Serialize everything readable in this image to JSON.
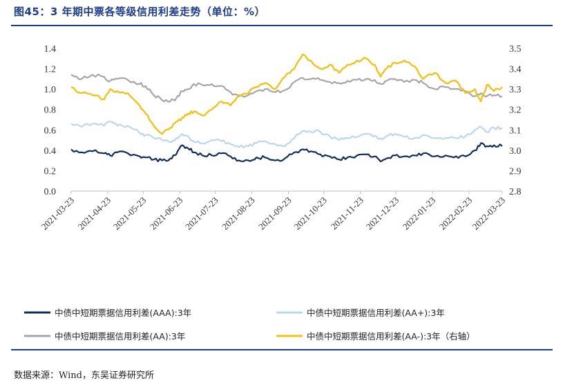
{
  "header": {
    "title": "图45：3 年期中票各等级信用利差走势（单位：%）"
  },
  "footer": {
    "source": "数据来源：Wind，东吴证券研究所"
  },
  "colors": {
    "AAA": "#0f2c5c",
    "AA_plus": "#bcd6ee",
    "AA": "#a6a6a6",
    "AA_minus": "#f2c11b",
    "title": "#1f3c88"
  },
  "chart_data": {
    "type": "line",
    "title": "3 年期中票各等级信用利差走势（单位：%）",
    "xlabel": "",
    "ylabel": "",
    "x_ticks": [
      "2021-03-23",
      "2021-04-23",
      "2021-05-23",
      "2021-06-23",
      "2021-07-23",
      "2021-08-23",
      "2021-09-23",
      "2021-10-23",
      "2021-11-23",
      "2021-12-23",
      "2022-01-23",
      "2022-02-23",
      "2022-03-23"
    ],
    "x_range": [
      "2021-03-23",
      "2022-03-23"
    ],
    "y_left": {
      "ylim": [
        0.0,
        1.4
      ],
      "ticks": [
        "0.0",
        "0.2",
        "0.4",
        "0.6",
        "0.8",
        "1.0",
        "1.2",
        "1.4"
      ]
    },
    "y_right": {
      "ylim": [
        2.8,
        3.5
      ],
      "ticks": [
        "2.8",
        "2.9",
        "3.0",
        "3.1",
        "3.2",
        "3.3",
        "3.4",
        "3.5"
      ]
    },
    "legend_position": "bottom",
    "series": [
      {
        "name": "中债中短期票据信用利差(AAA):3年",
        "axis": "left",
        "color_key": "AAA",
        "points": [
          [
            "2021-03-23",
            0.41
          ],
          [
            "2021-04-01",
            0.38
          ],
          [
            "2021-04-10",
            0.39
          ],
          [
            "2021-04-20",
            0.37
          ],
          [
            "2021-04-25",
            0.35
          ],
          [
            "2021-05-01",
            0.38
          ],
          [
            "2021-05-10",
            0.37
          ],
          [
            "2021-05-20",
            0.34
          ],
          [
            "2021-05-25",
            0.33
          ],
          [
            "2021-06-01",
            0.31
          ],
          [
            "2021-06-08",
            0.3
          ],
          [
            "2021-06-15",
            0.32
          ],
          [
            "2021-06-20",
            0.36
          ],
          [
            "2021-06-25",
            0.45
          ],
          [
            "2021-06-30",
            0.42
          ],
          [
            "2021-07-05",
            0.38
          ],
          [
            "2021-07-12",
            0.35
          ],
          [
            "2021-07-20",
            0.35
          ],
          [
            "2021-07-28",
            0.37
          ],
          [
            "2021-08-05",
            0.34
          ],
          [
            "2021-08-12",
            0.3
          ],
          [
            "2021-08-20",
            0.3
          ],
          [
            "2021-08-27",
            0.33
          ],
          [
            "2021-09-03",
            0.33
          ],
          [
            "2021-09-12",
            0.3
          ],
          [
            "2021-09-20",
            0.32
          ],
          [
            "2021-09-28",
            0.38
          ],
          [
            "2021-10-05",
            0.41
          ],
          [
            "2021-10-12",
            0.39
          ],
          [
            "2021-10-20",
            0.36
          ],
          [
            "2021-10-28",
            0.34
          ],
          [
            "2021-11-05",
            0.31
          ],
          [
            "2021-11-12",
            0.33
          ],
          [
            "2021-11-20",
            0.35
          ],
          [
            "2021-11-28",
            0.36
          ],
          [
            "2021-12-05",
            0.34
          ],
          [
            "2021-12-10",
            0.29
          ],
          [
            "2021-12-15",
            0.32
          ],
          [
            "2021-12-22",
            0.35
          ],
          [
            "2021-12-30",
            0.34
          ],
          [
            "2022-01-08",
            0.35
          ],
          [
            "2022-01-15",
            0.37
          ],
          [
            "2022-01-25",
            0.34
          ],
          [
            "2022-02-03",
            0.35
          ],
          [
            "2022-02-12",
            0.34
          ],
          [
            "2022-02-20",
            0.34
          ],
          [
            "2022-02-28",
            0.4
          ],
          [
            "2022-03-05",
            0.47
          ],
          [
            "2022-03-10",
            0.44
          ],
          [
            "2022-03-16",
            0.45
          ],
          [
            "2022-03-23",
            0.44
          ]
        ]
      },
      {
        "name": "中债中短期票据信用利差(AA+):3年",
        "axis": "left",
        "color_key": "AA_plus",
        "points": [
          [
            "2021-03-23",
            0.66
          ],
          [
            "2021-04-01",
            0.63
          ],
          [
            "2021-04-10",
            0.66
          ],
          [
            "2021-04-20",
            0.64
          ],
          [
            "2021-04-25",
            0.68
          ],
          [
            "2021-05-01",
            0.64
          ],
          [
            "2021-05-10",
            0.64
          ],
          [
            "2021-05-20",
            0.57
          ],
          [
            "2021-05-25",
            0.55
          ],
          [
            "2021-06-01",
            0.52
          ],
          [
            "2021-06-08",
            0.5
          ],
          [
            "2021-06-15",
            0.48
          ],
          [
            "2021-06-20",
            0.52
          ],
          [
            "2021-06-25",
            0.56
          ],
          [
            "2021-06-30",
            0.54
          ],
          [
            "2021-07-05",
            0.48
          ],
          [
            "2021-07-12",
            0.47
          ],
          [
            "2021-07-20",
            0.5
          ],
          [
            "2021-07-28",
            0.49
          ],
          [
            "2021-08-05",
            0.46
          ],
          [
            "2021-08-12",
            0.43
          ],
          [
            "2021-08-20",
            0.44
          ],
          [
            "2021-08-27",
            0.47
          ],
          [
            "2021-09-03",
            0.49
          ],
          [
            "2021-09-12",
            0.46
          ],
          [
            "2021-09-20",
            0.44
          ],
          [
            "2021-09-28",
            0.52
          ],
          [
            "2021-10-05",
            0.59
          ],
          [
            "2021-10-12",
            0.58
          ],
          [
            "2021-10-20",
            0.58
          ],
          [
            "2021-10-28",
            0.54
          ],
          [
            "2021-11-05",
            0.5
          ],
          [
            "2021-11-12",
            0.52
          ],
          [
            "2021-11-20",
            0.53
          ],
          [
            "2021-11-28",
            0.56
          ],
          [
            "2021-12-05",
            0.54
          ],
          [
            "2021-12-10",
            0.52
          ],
          [
            "2021-12-15",
            0.54
          ],
          [
            "2021-12-22",
            0.56
          ],
          [
            "2021-12-30",
            0.53
          ],
          [
            "2022-01-08",
            0.52
          ],
          [
            "2022-01-15",
            0.55
          ],
          [
            "2022-01-25",
            0.52
          ],
          [
            "2022-02-03",
            0.52
          ],
          [
            "2022-02-12",
            0.52
          ],
          [
            "2022-02-20",
            0.54
          ],
          [
            "2022-02-28",
            0.6
          ],
          [
            "2022-03-05",
            0.63
          ],
          [
            "2022-03-10",
            0.58
          ],
          [
            "2022-03-16",
            0.62
          ],
          [
            "2022-03-23",
            0.62
          ]
        ]
      },
      {
        "name": "中债中短期票据信用利差(AA):3年",
        "axis": "left",
        "color_key": "AA",
        "points": [
          [
            "2021-03-23",
            1.14
          ],
          [
            "2021-04-01",
            1.1
          ],
          [
            "2021-04-10",
            1.14
          ],
          [
            "2021-04-20",
            1.12
          ],
          [
            "2021-04-25",
            1.08
          ],
          [
            "2021-05-01",
            1.1
          ],
          [
            "2021-05-10",
            1.09
          ],
          [
            "2021-05-20",
            1.05
          ],
          [
            "2021-05-25",
            1.03
          ],
          [
            "2021-06-01",
            0.94
          ],
          [
            "2021-06-08",
            0.89
          ],
          [
            "2021-06-15",
            0.88
          ],
          [
            "2021-06-20",
            0.91
          ],
          [
            "2021-06-25",
            0.98
          ],
          [
            "2021-06-30",
            1.0
          ],
          [
            "2021-07-05",
            1.05
          ],
          [
            "2021-07-12",
            1.04
          ],
          [
            "2021-07-20",
            1.05
          ],
          [
            "2021-07-28",
            1.03
          ],
          [
            "2021-08-05",
            0.97
          ],
          [
            "2021-08-12",
            0.93
          ],
          [
            "2021-08-20",
            0.94
          ],
          [
            "2021-08-27",
            0.98
          ],
          [
            "2021-09-03",
            1.0
          ],
          [
            "2021-09-12",
            0.97
          ],
          [
            "2021-09-20",
            0.99
          ],
          [
            "2021-09-28",
            1.07
          ],
          [
            "2021-10-05",
            1.11
          ],
          [
            "2021-10-12",
            1.1
          ],
          [
            "2021-10-20",
            1.09
          ],
          [
            "2021-10-28",
            1.07
          ],
          [
            "2021-11-05",
            1.06
          ],
          [
            "2021-11-12",
            1.08
          ],
          [
            "2021-11-20",
            1.09
          ],
          [
            "2021-11-28",
            1.1
          ],
          [
            "2021-12-05",
            1.09
          ],
          [
            "2021-12-10",
            1.05
          ],
          [
            "2021-12-15",
            1.08
          ],
          [
            "2021-12-22",
            1.1
          ],
          [
            "2021-12-30",
            1.07
          ],
          [
            "2022-01-08",
            1.09
          ],
          [
            "2022-01-15",
            1.06
          ],
          [
            "2022-01-25",
            1.0
          ],
          [
            "2022-02-03",
            1.02
          ],
          [
            "2022-02-12",
            1.0
          ],
          [
            "2022-02-20",
            0.98
          ],
          [
            "2022-02-28",
            0.93
          ],
          [
            "2022-03-05",
            0.96
          ],
          [
            "2022-03-10",
            0.93
          ],
          [
            "2022-03-16",
            0.94
          ],
          [
            "2022-03-23",
            0.93
          ]
        ]
      },
      {
        "name": "中债中短期票据信用利差(AA-):3年（右轴）",
        "axis": "right",
        "color_key": "AA_minus",
        "points": [
          [
            "2021-03-23",
            3.31
          ],
          [
            "2021-04-01",
            3.28
          ],
          [
            "2021-04-10",
            3.27
          ],
          [
            "2021-04-20",
            3.25
          ],
          [
            "2021-04-25",
            3.3
          ],
          [
            "2021-05-01",
            3.29
          ],
          [
            "2021-05-10",
            3.28
          ],
          [
            "2021-05-20",
            3.22
          ],
          [
            "2021-05-25",
            3.18
          ],
          [
            "2021-06-01",
            3.12
          ],
          [
            "2021-06-08",
            3.08
          ],
          [
            "2021-06-15",
            3.11
          ],
          [
            "2021-06-20",
            3.14
          ],
          [
            "2021-06-25",
            3.16
          ],
          [
            "2021-06-30",
            3.18
          ],
          [
            "2021-07-05",
            3.19
          ],
          [
            "2021-07-12",
            3.17
          ],
          [
            "2021-07-20",
            3.2
          ],
          [
            "2021-07-28",
            3.24
          ],
          [
            "2021-08-05",
            3.22
          ],
          [
            "2021-08-12",
            3.27
          ],
          [
            "2021-08-20",
            3.28
          ],
          [
            "2021-08-27",
            3.31
          ],
          [
            "2021-09-03",
            3.33
          ],
          [
            "2021-09-12",
            3.3
          ],
          [
            "2021-09-20",
            3.36
          ],
          [
            "2021-09-28",
            3.4
          ],
          [
            "2021-10-05",
            3.47
          ],
          [
            "2021-10-12",
            3.44
          ],
          [
            "2021-10-20",
            3.4
          ],
          [
            "2021-10-28",
            3.42
          ],
          [
            "2021-11-05",
            3.38
          ],
          [
            "2021-11-12",
            3.42
          ],
          [
            "2021-11-20",
            3.44
          ],
          [
            "2021-11-28",
            3.45
          ],
          [
            "2021-12-05",
            3.42
          ],
          [
            "2021-12-10",
            3.36
          ],
          [
            "2021-12-15",
            3.4
          ],
          [
            "2021-12-22",
            3.43
          ],
          [
            "2021-12-30",
            3.44
          ],
          [
            "2022-01-08",
            3.41
          ],
          [
            "2022-01-15",
            3.35
          ],
          [
            "2022-01-25",
            3.38
          ],
          [
            "2022-02-03",
            3.33
          ],
          [
            "2022-02-12",
            3.34
          ],
          [
            "2022-02-20",
            3.28
          ],
          [
            "2022-02-28",
            3.3
          ],
          [
            "2022-03-05",
            3.24
          ],
          [
            "2022-03-10",
            3.32
          ],
          [
            "2022-03-16",
            3.29
          ],
          [
            "2022-03-23",
            3.31
          ]
        ]
      }
    ]
  }
}
